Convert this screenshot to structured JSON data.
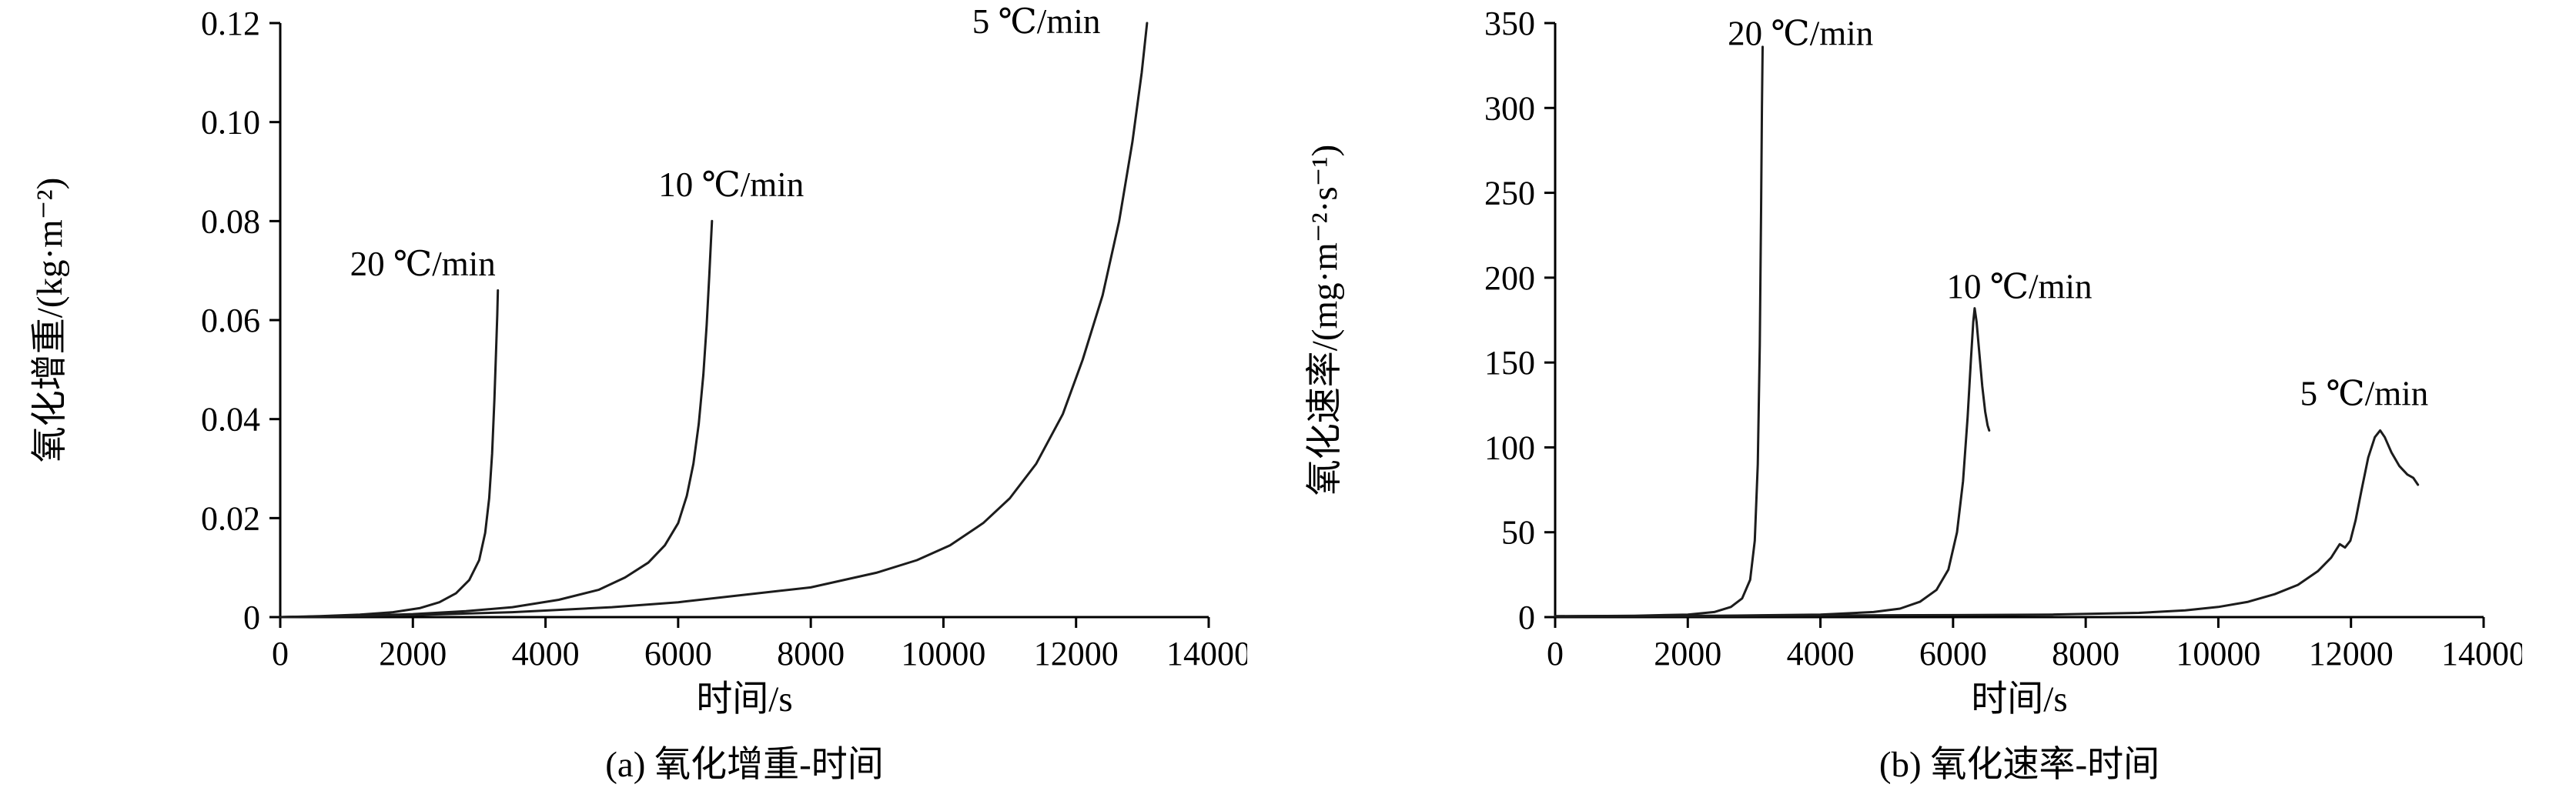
{
  "page": {
    "background": "#ffffff",
    "line_color": "#1c1c1c"
  },
  "chart_data": [
    {
      "type": "line",
      "panel_id": "a",
      "caption": "(a) 氧化增重-时间",
      "xlabel": "时间/s",
      "ylabel": "氧化增重/(kg·m⁻²)",
      "xlim": [
        0,
        14000
      ],
      "ylim": [
        0,
        0.12
      ],
      "grid": false,
      "legend_position": "none",
      "xticks": [
        0,
        2000,
        4000,
        6000,
        8000,
        10000,
        12000,
        14000
      ],
      "xtick_labels": [
        "0",
        "2000",
        "4000",
        "6000",
        "8000",
        "10000",
        "12000",
        "14000"
      ],
      "yticks": [
        0,
        0.02,
        0.04,
        0.06,
        0.08,
        0.1,
        0.12
      ],
      "ytick_labels": [
        "0",
        "0.02",
        "0.04",
        "0.06",
        "0.08",
        "0.10",
        "0.12"
      ],
      "series": [
        {
          "name": "20 ℃/min",
          "points": [
            [
              0,
              0
            ],
            [
              600,
              0.0002
            ],
            [
              1200,
              0.0005
            ],
            [
              1700,
              0.001
            ],
            [
              2100,
              0.0018
            ],
            [
              2400,
              0.003
            ],
            [
              2650,
              0.0048
            ],
            [
              2850,
              0.0075
            ],
            [
              3000,
              0.0115
            ],
            [
              3090,
              0.017
            ],
            [
              3150,
              0.024
            ],
            [
              3195,
              0.033
            ],
            [
              3230,
              0.044
            ],
            [
              3255,
              0.054
            ],
            [
              3272,
              0.061
            ],
            [
              3282,
              0.066
            ]
          ]
        },
        {
          "name": "10 ℃/min",
          "points": [
            [
              0,
              0
            ],
            [
              1000,
              0.0002
            ],
            [
              2000,
              0.0006
            ],
            [
              2800,
              0.0012
            ],
            [
              3500,
              0.002
            ],
            [
              4200,
              0.0035
            ],
            [
              4800,
              0.0055
            ],
            [
              5200,
              0.008
            ],
            [
              5550,
              0.011
            ],
            [
              5800,
              0.0145
            ],
            [
              6000,
              0.019
            ],
            [
              6130,
              0.0245
            ],
            [
              6230,
              0.031
            ],
            [
              6310,
              0.039
            ],
            [
              6380,
              0.049
            ],
            [
              6430,
              0.059
            ],
            [
              6470,
              0.069
            ],
            [
              6495,
              0.076
            ],
            [
              6510,
              0.08
            ]
          ]
        },
        {
          "name": "5 ℃/min",
          "points": [
            [
              0,
              0
            ],
            [
              2000,
              0.0004
            ],
            [
              3500,
              0.001
            ],
            [
              5000,
              0.002
            ],
            [
              6000,
              0.003
            ],
            [
              7000,
              0.0045
            ],
            [
              8000,
              0.006
            ],
            [
              9000,
              0.009
            ],
            [
              9600,
              0.0115
            ],
            [
              10100,
              0.0145
            ],
            [
              10600,
              0.019
            ],
            [
              11000,
              0.024
            ],
            [
              11400,
              0.031
            ],
            [
              11800,
              0.041
            ],
            [
              12100,
              0.052
            ],
            [
              12400,
              0.065
            ],
            [
              12650,
              0.08
            ],
            [
              12850,
              0.096
            ],
            [
              12990,
              0.11
            ],
            [
              13070,
              0.12
            ]
          ]
        }
      ],
      "annotations": [
        {
          "text": "20 ℃/min",
          "x": 2150,
          "y": 0.069
        },
        {
          "text": "10 ℃/min",
          "x": 6800,
          "y": 0.085
        },
        {
          "text": "5 ℃/min",
          "x": 11400,
          "y": 0.118
        }
      ]
    },
    {
      "type": "line",
      "panel_id": "b",
      "caption": "(b) 氧化速率-时间",
      "xlabel": "时间/s",
      "ylabel": "氧化速率/(mg·m⁻²·s⁻¹)",
      "xlim": [
        0,
        14000
      ],
      "ylim": [
        0,
        350
      ],
      "grid": false,
      "legend_position": "none",
      "xticks": [
        0,
        2000,
        4000,
        6000,
        8000,
        10000,
        12000,
        14000
      ],
      "xtick_labels": [
        "0",
        "2000",
        "4000",
        "6000",
        "8000",
        "10000",
        "12000",
        "14000"
      ],
      "yticks": [
        0,
        50,
        100,
        150,
        200,
        250,
        300,
        350
      ],
      "ytick_labels": [
        "0",
        "50",
        "100",
        "150",
        "200",
        "250",
        "300",
        "350"
      ],
      "series": [
        {
          "name": "20 ℃/min",
          "points": [
            [
              0,
              0.5
            ],
            [
              1200,
              0.8
            ],
            [
              2000,
              1.5
            ],
            [
              2400,
              3
            ],
            [
              2650,
              6
            ],
            [
              2820,
              11
            ],
            [
              2940,
              22
            ],
            [
              3010,
              45
            ],
            [
              3055,
              90
            ],
            [
              3085,
              160
            ],
            [
              3105,
              240
            ],
            [
              3118,
              300
            ],
            [
              3128,
              336
            ]
          ]
        },
        {
          "name": "10 ℃/min",
          "points": [
            [
              0,
              0.5
            ],
            [
              2500,
              0.8
            ],
            [
              4000,
              1.5
            ],
            [
              4800,
              3
            ],
            [
              5200,
              5
            ],
            [
              5500,
              9
            ],
            [
              5750,
              16
            ],
            [
              5930,
              28
            ],
            [
              6060,
              50
            ],
            [
              6150,
              80
            ],
            [
              6220,
              118
            ],
            [
              6270,
              152
            ],
            [
              6305,
              174
            ],
            [
              6325,
              182
            ],
            [
              6355,
              174
            ],
            [
              6395,
              156
            ],
            [
              6440,
              136
            ],
            [
              6485,
              121
            ],
            [
              6520,
              113
            ],
            [
              6545,
              110
            ]
          ]
        },
        {
          "name": "5 ℃/min",
          "points": [
            [
              0,
              0.5
            ],
            [
              3000,
              0.8
            ],
            [
              6000,
              1.2
            ],
            [
              7500,
              1.5
            ],
            [
              8800,
              2.5
            ],
            [
              9500,
              4
            ],
            [
              10000,
              6
            ],
            [
              10450,
              9
            ],
            [
              10850,
              13.5
            ],
            [
              11200,
              19
            ],
            [
              11500,
              27
            ],
            [
              11700,
              35
            ],
            [
              11830,
              43
            ],
            [
              11910,
              41
            ],
            [
              11990,
              45
            ],
            [
              12070,
              57
            ],
            [
              12160,
              75
            ],
            [
              12260,
              94
            ],
            [
              12360,
              106
            ],
            [
              12440,
              110
            ],
            [
              12510,
              106
            ],
            [
              12610,
              97
            ],
            [
              12730,
              89
            ],
            [
              12850,
              84
            ],
            [
              12940,
              82
            ],
            [
              13010,
              78
            ]
          ]
        }
      ],
      "annotations": [
        {
          "text": "20 ℃/min",
          "x": 3700,
          "y": 337
        },
        {
          "text": "10 ℃/min",
          "x": 7000,
          "y": 188
        },
        {
          "text": "5 ℃/min",
          "x": 12200,
          "y": 125
        }
      ]
    }
  ]
}
